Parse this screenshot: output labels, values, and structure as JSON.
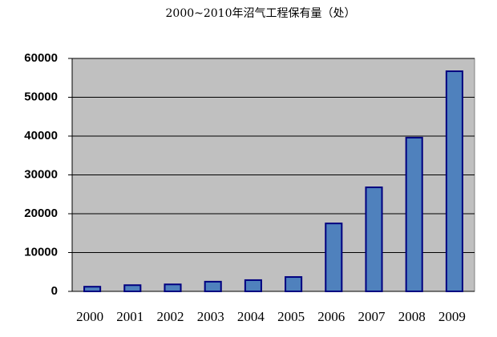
{
  "chart_data": {
    "type": "bar",
    "title": "2000~2010年沼气工程保有量（处）",
    "categories": [
      "2000",
      "2001",
      "2002",
      "2003",
      "2004",
      "2005",
      "2006",
      "2007",
      "2008",
      "2009"
    ],
    "values": [
      1200,
      1600,
      1800,
      2500,
      2900,
      3700,
      17500,
      26800,
      39600,
      56700
    ],
    "color": "#4f81bd",
    "ylim": [
      0,
      60000
    ],
    "yticks": [
      0,
      10000,
      20000,
      30000,
      40000,
      50000,
      60000
    ],
    "grid": true
  }
}
